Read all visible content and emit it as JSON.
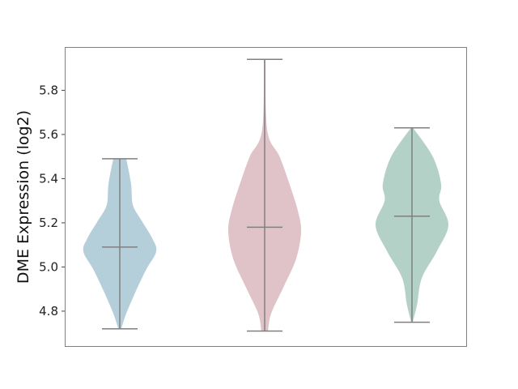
{
  "chart_data": {
    "type": "violin",
    "title": "",
    "xlabel": "",
    "ylabel": "DME Expression (log2)",
    "ylim": [
      4.642,
      5.996
    ],
    "yticks": [
      "4.8",
      "5.0",
      "5.2",
      "5.4",
      "5.6",
      "5.8"
    ],
    "grid": false,
    "line_color": "#808080",
    "series": [
      {
        "color": "#b5cfda",
        "min": 4.72,
        "median": 5.09,
        "max": 5.49,
        "density": [
          [
            4.72,
            0.04
          ],
          [
            4.79,
            0.18
          ],
          [
            4.89,
            0.44
          ],
          [
            4.99,
            0.73
          ],
          [
            5.07,
            1.0
          ],
          [
            5.13,
            0.89
          ],
          [
            5.21,
            0.6
          ],
          [
            5.28,
            0.36
          ],
          [
            5.376,
            0.31
          ],
          [
            5.49,
            0.18
          ]
        ]
      },
      {
        "color": "#e0c3c9",
        "min": 4.71,
        "median": 5.18,
        "max": 5.94,
        "density": [
          [
            4.71,
            0.09
          ],
          [
            4.79,
            0.18
          ],
          [
            4.91,
            0.52
          ],
          [
            5.035,
            0.86
          ],
          [
            5.16,
            1.0
          ],
          [
            5.255,
            0.91
          ],
          [
            5.376,
            0.68
          ],
          [
            5.5,
            0.41
          ],
          [
            5.62,
            0.07
          ],
          [
            5.94,
            0.02
          ]
        ]
      },
      {
        "color": "#b3d1c6",
        "min": 4.75,
        "median": 5.23,
        "max": 5.63,
        "density": [
          [
            4.75,
            0.02
          ],
          [
            4.83,
            0.14
          ],
          [
            4.95,
            0.27
          ],
          [
            5.07,
            0.68
          ],
          [
            5.19,
            1.0
          ],
          [
            5.3,
            0.75
          ],
          [
            5.376,
            0.8
          ],
          [
            5.5,
            0.57
          ],
          [
            5.63,
            0.03
          ]
        ]
      }
    ]
  }
}
